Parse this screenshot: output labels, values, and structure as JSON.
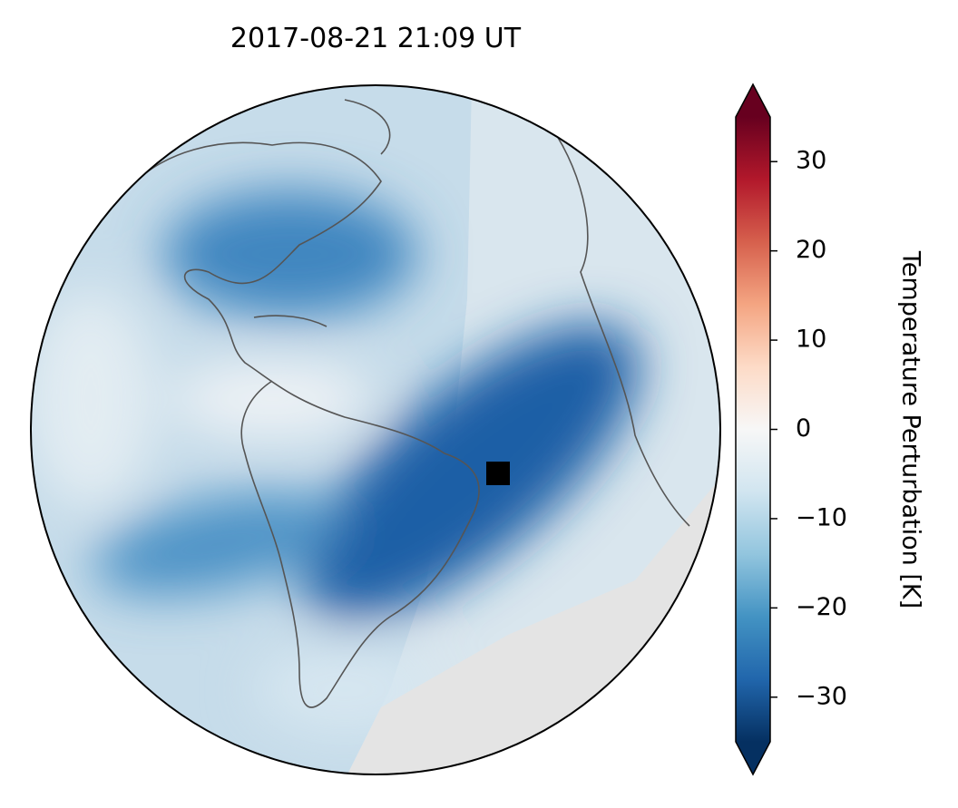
{
  "chart_data": {
    "type": "map",
    "title": "2017-08-21  21:09 UT",
    "colorbar": {
      "label": "Temperature Perturbation [K]",
      "colormap": "RdBu_r",
      "extend": "both",
      "lim": [
        -35,
        35
      ],
      "ticks": [
        30,
        20,
        10,
        0,
        {
          "value": -10,
          "label": "−10"
        },
        {
          "value": -20,
          "label": "−20"
        },
        {
          "value": -30,
          "label": "−30"
        }
      ]
    }
  }
}
